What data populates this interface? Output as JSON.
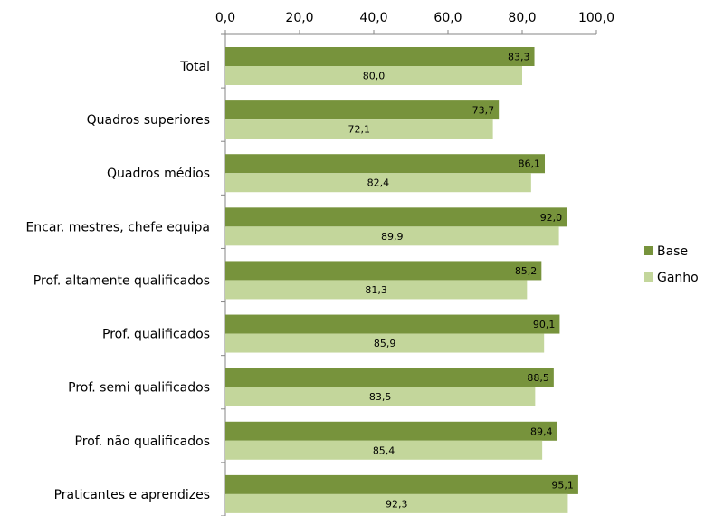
{
  "chart_data": {
    "type": "bar",
    "orientation": "horizontal",
    "categories": [
      "Total",
      "Quadros superiores",
      "Quadros médios",
      "Encar. mestres, chefe equipa",
      "Prof. altamente qualificados",
      "Prof. qualificados",
      "Prof. semi qualificados",
      "Prof. não qualificados",
      "Praticantes e aprendizes"
    ],
    "series": [
      {
        "name": "Base",
        "color": "#77933C",
        "values": [
          83.3,
          73.7,
          86.1,
          92.0,
          85.2,
          90.1,
          88.5,
          89.4,
          95.1
        ],
        "labels": [
          "83,3",
          "73,7",
          "86,1",
          "92,0",
          "85,2",
          "90,1",
          "88,5",
          "89,4",
          "95,1"
        ]
      },
      {
        "name": "Ganho",
        "color": "#C3D69B",
        "values": [
          80.0,
          72.1,
          82.4,
          89.9,
          81.3,
          85.9,
          83.5,
          85.4,
          92.3
        ],
        "labels": [
          "80,0",
          "72,1",
          "82,4",
          "89,9",
          "81,3",
          "85,9",
          "83,5",
          "85,4",
          "92,3"
        ]
      }
    ],
    "x_ticks": [
      {
        "value": 0,
        "label": "0,0"
      },
      {
        "value": 20,
        "label": "20,0"
      },
      {
        "value": 40,
        "label": "40,0"
      },
      {
        "value": 60,
        "label": "60,0"
      },
      {
        "value": 80,
        "label": "80,0"
      },
      {
        "value": 100,
        "label": "100,0"
      }
    ],
    "xlim": [
      0,
      100
    ],
    "x_axis_position": "top",
    "grid": false,
    "legend": "right",
    "title": "",
    "xlabel": "",
    "ylabel": ""
  }
}
